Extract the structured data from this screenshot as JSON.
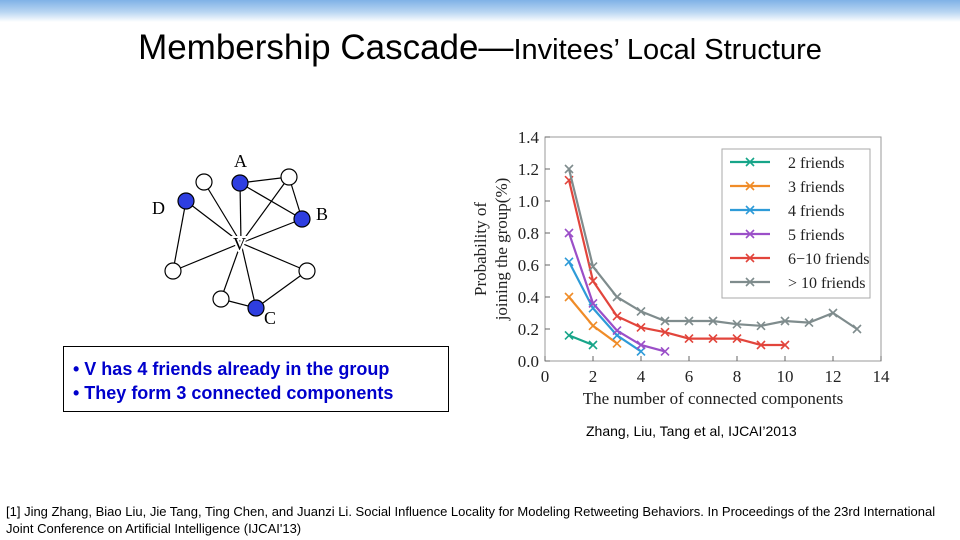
{
  "slide": {
    "title_main": "Membership Cascade",
    "title_sep": "—",
    "title_sub": "Invitees’ Local Structure"
  },
  "graph": {
    "nodes": [
      {
        "id": "A",
        "label": "A",
        "in_group": true
      },
      {
        "id": "B",
        "label": "B",
        "in_group": true
      },
      {
        "id": "C",
        "label": "C",
        "in_group": true
      },
      {
        "id": "D",
        "label": "D",
        "in_group": true
      },
      {
        "id": "V",
        "label": "V",
        "in_group": false
      },
      {
        "id": "n1",
        "label": "",
        "in_group": false
      },
      {
        "id": "n2",
        "label": "",
        "in_group": false
      },
      {
        "id": "n3",
        "label": "",
        "in_group": false
      },
      {
        "id": "n4",
        "label": "",
        "in_group": false
      },
      {
        "id": "n5",
        "label": "",
        "in_group": false
      }
    ],
    "colors": {
      "group": "#2e3ee0",
      "other": "#ffffff"
    }
  },
  "callout": {
    "lines": [
      "• V has 4 friends already in the group",
      "• They form 3 connected components"
    ]
  },
  "chart_data": {
    "type": "line",
    "xlabel": "The number of connected components",
    "ylabel_line1": "Probability of",
    "ylabel_line2": "joining the group(%)",
    "xlim": [
      0,
      14
    ],
    "ylim": [
      0,
      1.4
    ],
    "xticks": [
      0,
      2,
      4,
      6,
      8,
      10,
      12,
      14
    ],
    "yticks": [
      0.0,
      0.2,
      0.4,
      0.6,
      0.8,
      1.0,
      1.2,
      1.4
    ],
    "legend_position": "top-right",
    "marker": "x",
    "series": [
      {
        "name": "2 friends",
        "color": "#17a589",
        "x": [
          1,
          2
        ],
        "y": [
          0.16,
          0.1
        ]
      },
      {
        "name": "3 friends",
        "color": "#f08c28",
        "x": [
          1,
          2,
          3
        ],
        "y": [
          0.4,
          0.22,
          0.11
        ]
      },
      {
        "name": "4 friends",
        "color": "#2e9bd8",
        "x": [
          1,
          2,
          3,
          4
        ],
        "y": [
          0.62,
          0.33,
          0.16,
          0.06
        ]
      },
      {
        "name": "5 friends",
        "color": "#9b4fc8",
        "x": [
          1,
          2,
          3,
          4,
          5
        ],
        "y": [
          0.8,
          0.36,
          0.19,
          0.1,
          0.06
        ]
      },
      {
        "name": "6−10 friends",
        "color": "#e2453c",
        "x": [
          1,
          2,
          3,
          4,
          5,
          6,
          7,
          8,
          9,
          10
        ],
        "y": [
          1.13,
          0.5,
          0.28,
          0.21,
          0.18,
          0.14,
          0.14,
          0.14,
          0.1,
          0.1
        ]
      },
      {
        "name": "> 10 friends",
        "color": "#7f8c8d",
        "x": [
          1,
          2,
          3,
          4,
          5,
          6,
          7,
          8,
          9,
          10,
          11,
          12,
          13
        ],
        "y": [
          1.2,
          0.59,
          0.4,
          0.31,
          0.25,
          0.25,
          0.25,
          0.23,
          0.22,
          0.25,
          0.24,
          0.3,
          0.2
        ]
      }
    ]
  },
  "citation": "Zhang, Liu, Tang et al, IJCAI’2013",
  "reference": "[1] Jing Zhang, Biao Liu, Jie Tang, Ting Chen, and Juanzi Li. Social Influence Locality for Modeling Retweeting Behaviors. In Proceedings of the 23rd International Joint Conference on Artificial Intelligence (IJCAI'13)"
}
